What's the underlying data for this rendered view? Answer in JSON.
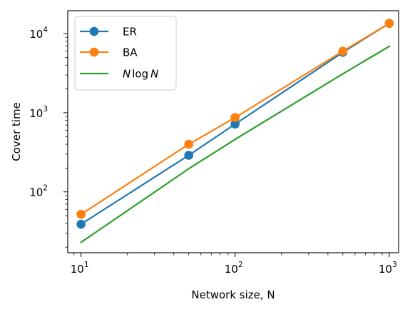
{
  "chart_data": {
    "type": "line",
    "xlabel": "Network size, N",
    "ylabel": "Cover time",
    "xscale": "log",
    "yscale": "log",
    "xlim": [
      8.2,
      1150
    ],
    "ylim": [
      17,
      19500
    ],
    "xticks": [
      {
        "value": 10,
        "base": "10",
        "exp": "1"
      },
      {
        "value": 100,
        "base": "10",
        "exp": "2"
      },
      {
        "value": 1000,
        "base": "10",
        "exp": "3"
      }
    ],
    "yticks": [
      {
        "value": 100,
        "base": "10",
        "exp": "2"
      },
      {
        "value": 1000,
        "base": "10",
        "exp": "3"
      },
      {
        "value": 10000,
        "base": "10",
        "exp": "4"
      }
    ],
    "legend_position": "upper-left",
    "grid": false,
    "series": [
      {
        "name": "ER",
        "color": "#1f77b4",
        "marker": "circle",
        "x": [
          10,
          50,
          100,
          500,
          1000
        ],
        "y": [
          39,
          290,
          720,
          5800,
          13500
        ]
      },
      {
        "name": "BA",
        "color": "#ff7f0e",
        "marker": "circle",
        "x": [
          10,
          50,
          100,
          500,
          1000
        ],
        "y": [
          52,
          400,
          870,
          6000,
          13500
        ]
      },
      {
        "name": "N log N",
        "color": "#2ca02c",
        "marker": "none",
        "name_parts": {
          "pre": "N",
          "fn": "log",
          "post": "N"
        },
        "x": [
          10,
          50,
          100,
          500,
          1000
        ],
        "y": [
          23,
          196,
          461,
          3107,
          6908
        ]
      }
    ]
  }
}
